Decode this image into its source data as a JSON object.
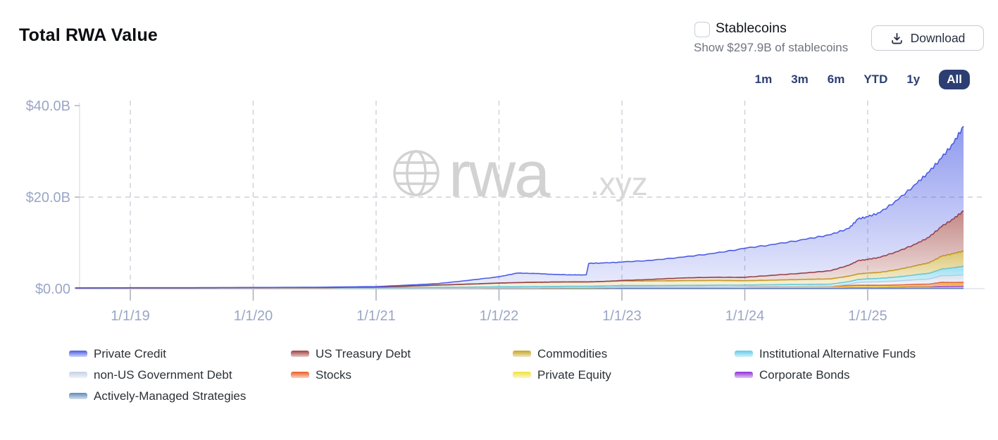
{
  "page": {
    "title": "Total RWA Value"
  },
  "stablecoins": {
    "label": "Stablecoins",
    "sublabel": "Show $297.9B of stablecoins",
    "checked": false
  },
  "download": {
    "label": "Download"
  },
  "ranges": {
    "options": [
      "1m",
      "3m",
      "6m",
      "YTD",
      "1y",
      "All"
    ],
    "selected": "All"
  },
  "watermark": {
    "brand": "rwa",
    "suffix": ".xyz"
  },
  "colors": {
    "accent_navy": "#2c3e72",
    "axis_label": "#9aa6c6",
    "grid": "#cbcfd8",
    "axis_line": "#dfe3ec",
    "tick": "#a9aeb9",
    "watermark": "#d2d2d2"
  },
  "chart_data": {
    "type": "area",
    "stacked": true,
    "title": "Total RWA Value",
    "unit": "USD billions",
    "ylim": [
      0,
      40
    ],
    "grid": "dashed",
    "legend_position": "bottom",
    "y_ticks": [
      {
        "value": 40,
        "label": "$40.0B"
      },
      {
        "value": 20,
        "label": "$20.0B"
      },
      {
        "value": 0,
        "label": "$0.00"
      }
    ],
    "x_tick_years": [
      2019,
      2020,
      2021,
      2022,
      2023,
      2024,
      2025
    ],
    "x_tick_labels": [
      "1/1/19",
      "1/1/20",
      "1/1/21",
      "1/1/22",
      "1/1/23",
      "1/1/24",
      "1/1/25"
    ],
    "x_years": [
      2018.55,
      2019.0,
      2019.5,
      2020.0,
      2020.5,
      2021.0,
      2021.25,
      2021.5,
      2021.75,
      2022.0,
      2022.15,
      2022.3,
      2022.45,
      2022.6,
      2022.71,
      2022.73,
      2022.85,
      2023.0,
      2023.25,
      2023.5,
      2023.75,
      2024.0,
      2024.25,
      2024.5,
      2024.7,
      2024.85,
      2024.92,
      2025.0,
      2025.1,
      2025.25,
      2025.4,
      2025.5,
      2025.6,
      2025.7,
      2025.78
    ],
    "legend_order": [
      "Private Credit",
      "US Treasury Debt",
      "Commodities",
      "Institutional Alternative Funds",
      "non-US Government Debt",
      "Stocks",
      "Private Equity",
      "Corporate Bonds",
      "Actively-Managed Strategies"
    ],
    "series": [
      {
        "name": "Actively-Managed Strategies",
        "color": "#6089b8",
        "values": [
          0.02,
          0.02,
          0.02,
          0.02,
          0.02,
          0.02,
          0.02,
          0.02,
          0.02,
          0.02,
          0.02,
          0.02,
          0.02,
          0.02,
          0.02,
          0.02,
          0.02,
          0.03,
          0.03,
          0.03,
          0.03,
          0.03,
          0.03,
          0.03,
          0.03,
          0.04,
          0.04,
          0.04,
          0.04,
          0.04,
          0.05,
          0.05,
          0.05,
          0.05,
          0.05
        ]
      },
      {
        "name": "Corporate Bonds",
        "color": "#8e2fd7",
        "values": [
          0,
          0,
          0,
          0,
          0,
          0,
          0,
          0,
          0.05,
          0.1,
          0.1,
          0.12,
          0.15,
          0.18,
          0.18,
          0.18,
          0.2,
          0.25,
          0.25,
          0.25,
          0.25,
          0.25,
          0.28,
          0.28,
          0.28,
          0.3,
          0.3,
          0.3,
          0.32,
          0.35,
          0.4,
          0.4,
          0.45,
          0.48,
          0.5
        ]
      },
      {
        "name": "Private Equity",
        "color": "#f0e13a",
        "values": [
          0,
          0,
          0,
          0,
          0,
          0,
          0,
          0,
          0,
          0,
          0,
          0,
          0,
          0,
          0,
          0,
          0,
          0,
          0,
          0,
          0,
          0,
          0,
          0,
          0,
          0.05,
          0.05,
          0.05,
          0.05,
          0.08,
          0.1,
          0.1,
          0.3,
          0.28,
          0.3
        ]
      },
      {
        "name": "Stocks",
        "color": "#e85c22",
        "values": [
          0,
          0,
          0,
          0,
          0,
          0.02,
          0.02,
          0.03,
          0.04,
          0.05,
          0.05,
          0.06,
          0.07,
          0.08,
          0.08,
          0.08,
          0.09,
          0.1,
          0.1,
          0.12,
          0.13,
          0.15,
          0.17,
          0.2,
          0.22,
          0.3,
          0.35,
          0.35,
          0.33,
          0.35,
          0.4,
          0.45,
          0.6,
          0.55,
          0.55
        ]
      },
      {
        "name": "non-US Government Debt",
        "color": "#c5d1e6",
        "values": [
          0,
          0,
          0,
          0,
          0,
          0,
          0,
          0,
          0,
          0,
          0,
          0,
          0,
          0,
          0,
          0,
          0,
          0,
          0,
          0,
          0,
          0,
          0,
          0,
          0,
          0.3,
          0.6,
          0.7,
          0.75,
          0.85,
          1.0,
          1.1,
          1.4,
          1.5,
          1.6
        ]
      },
      {
        "name": "Institutional Alternative Funds",
        "color": "#5ecbe9",
        "values": [
          0.12,
          0.15,
          0.15,
          0.18,
          0.18,
          0.2,
          0.2,
          0.22,
          0.22,
          0.25,
          0.25,
          0.25,
          0.25,
          0.25,
          0.25,
          0.25,
          0.28,
          0.3,
          0.3,
          0.32,
          0.33,
          0.35,
          0.38,
          0.42,
          0.45,
          0.55,
          0.65,
          0.7,
          0.75,
          0.9,
          1.1,
          1.25,
          1.45,
          1.7,
          1.9
        ]
      },
      {
        "name": "Commodities",
        "color": "#c7a41f",
        "values": [
          0,
          0,
          0,
          0.02,
          0.03,
          0.1,
          0.3,
          0.5,
          0.65,
          0.8,
          0.9,
          0.95,
          0.95,
          0.95,
          0.95,
          0.95,
          0.98,
          1.0,
          1.0,
          1.02,
          1.05,
          0.95,
          1.0,
          1.1,
          1.15,
          1.2,
          1.2,
          1.25,
          1.3,
          1.6,
          2.0,
          2.3,
          2.8,
          3.1,
          3.3
        ]
      },
      {
        "name": "US Treasury Debt",
        "color": "#9d3f3b",
        "values": [
          0,
          0,
          0,
          0,
          0,
          0,
          0,
          0,
          0,
          0,
          0,
          0,
          0,
          0,
          0,
          0,
          0,
          0.1,
          0.35,
          0.6,
          0.7,
          0.75,
          1.1,
          1.4,
          1.8,
          2.4,
          2.9,
          3.0,
          3.3,
          4.0,
          4.8,
          5.6,
          6.5,
          7.6,
          8.8
        ]
      },
      {
        "name": "Private Credit",
        "color": "#4b5ce4",
        "values": [
          0.01,
          0.03,
          0.03,
          0.03,
          0.07,
          0.11,
          0.21,
          0.33,
          0.82,
          1.38,
          2.08,
          1.9,
          1.66,
          1.52,
          1.52,
          4.02,
          4.03,
          4.02,
          4.17,
          4.56,
          5.21,
          6.32,
          6.74,
          7.37,
          7.87,
          8.06,
          9.11,
          9.31,
          9.76,
          11.33,
          13.15,
          14.25,
          14.95,
          16.54,
          18.5
        ]
      }
    ]
  }
}
